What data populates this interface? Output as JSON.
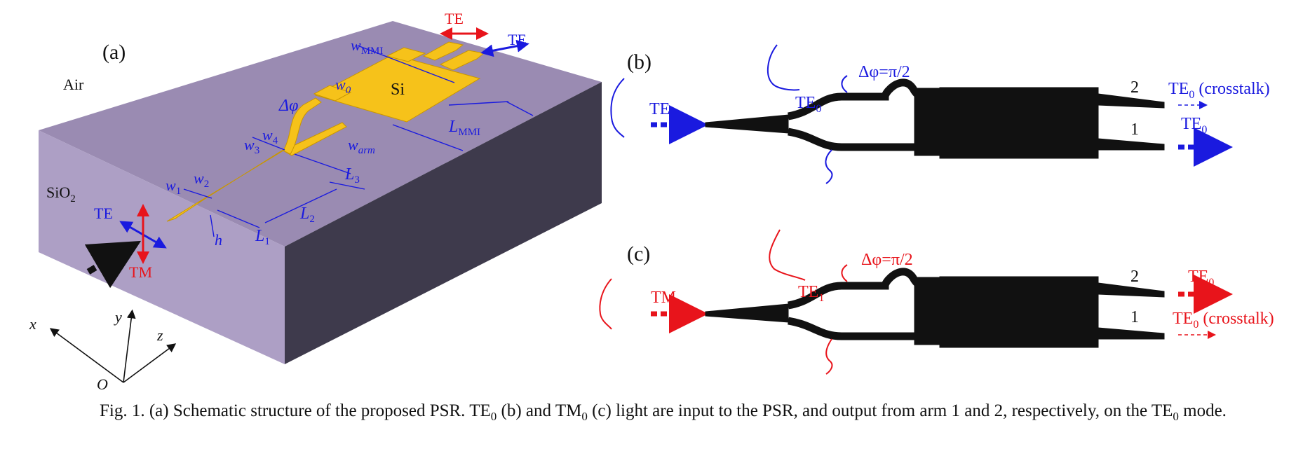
{
  "panel_a": {
    "label": "(a)",
    "air": "Air",
    "sio2": "SiO",
    "sio2_sub": "2",
    "si": "Si",
    "te_top_red": "TE",
    "te_top_blue": "TE",
    "te_input": "TE",
    "tm_input": "TM",
    "dims": {
      "w_mmi": "w",
      "w_mmi_sub": "MMI",
      "w0": "w",
      "w0_sub": "0",
      "delta_phi": "Δφ",
      "w4": "w",
      "w4_sub": "4",
      "w3": "w",
      "w3_sub": "3",
      "w_arm": "w",
      "w_arm_sub": "arm",
      "l_mmi": "L",
      "l_mmi_sub": "MMI",
      "l3": "L",
      "l3_sub": "3",
      "w1": "w",
      "w1_sub": "1",
      "w2": "w",
      "w2_sub": "2",
      "l2": "L",
      "l2_sub": "2",
      "l1": "L",
      "l1_sub": "1",
      "h": "h"
    },
    "axes": {
      "x": "x",
      "y": "y",
      "z": "z",
      "o": "O"
    }
  },
  "panel_b": {
    "label": "(b)",
    "input": "TE",
    "input_sub": "0",
    "mid": "TE",
    "mid_sub": "0",
    "phase": "Δφ=π/2",
    "port2": "2",
    "port1": "1",
    "out2": "TE",
    "out2_sub": "0",
    "out2_suffix": " (crosstalk)",
    "out1": "TE",
    "out1_sub": "0"
  },
  "panel_c": {
    "label": "(c)",
    "input": "TM",
    "input_sub": "0",
    "mid": "TE",
    "mid_sub": "1",
    "phase": "Δφ=π/2",
    "port2": "2",
    "port1": "1",
    "out2": "TE",
    "out2_sub": "0",
    "out1": "TE",
    "out1_sub": "0",
    "out1_suffix": " (crosstalk)"
  },
  "caption": {
    "p1": "Fig. 1. (a) Schematic structure of the proposed PSR. TE",
    "s1": "0",
    "p2": " (b) and TM",
    "s2": "0",
    "p3": " (c) light are input to the PSR, and output from arm 1 and 2, respectively, on the TE",
    "s3": "0",
    "p4": " mode."
  },
  "colors": {
    "slab_top": "#9a8bb2",
    "slab_front": "#ad9fc5",
    "slab_side": "#3e3a4c",
    "silicon": "#f6c21a",
    "blue": "#1a1adf",
    "red": "#e8141b"
  }
}
